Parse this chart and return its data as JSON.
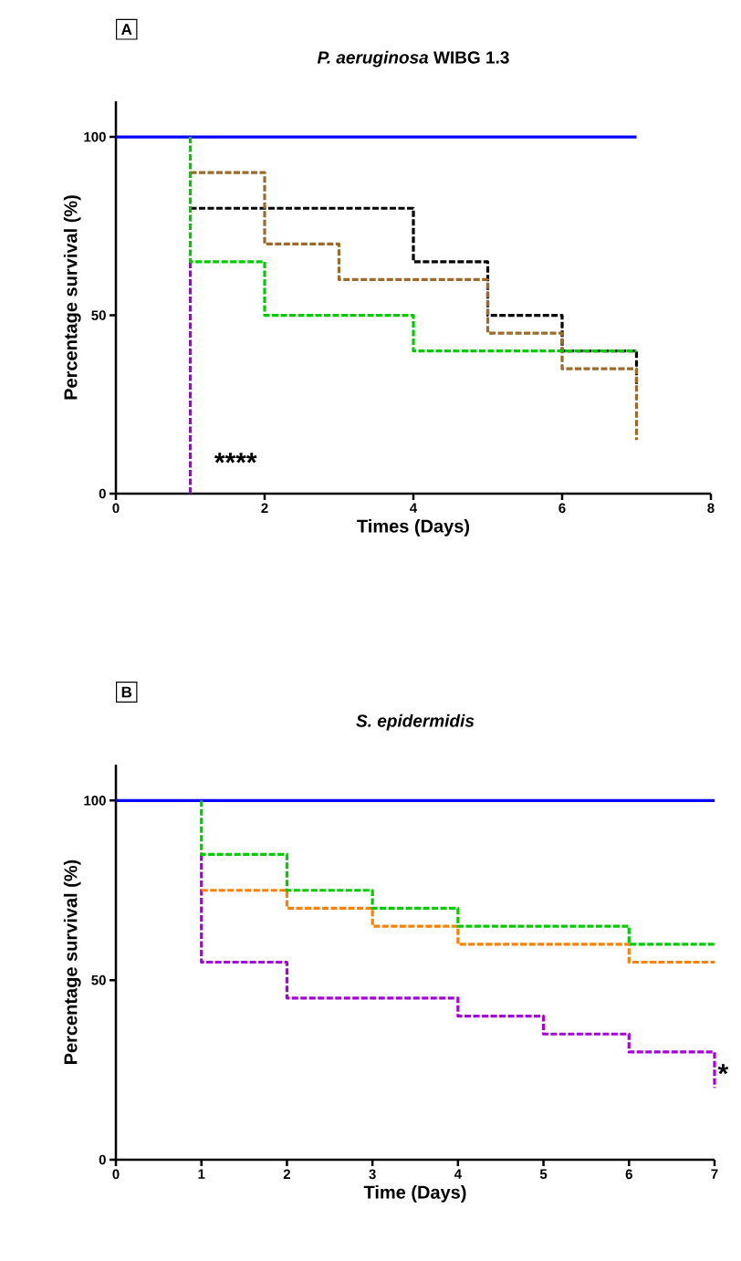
{
  "chart_data": [
    {
      "type": "step",
      "title": "*P. aeruginosa* WIBG 1.3",
      "xlabel": "Times (Days)",
      "ylabel": "Percentage survival (%)",
      "xlim": [
        0,
        8
      ],
      "ylim": [
        0,
        110
      ],
      "xticks": [
        0,
        2,
        4,
        6,
        8
      ],
      "yticks": [
        0,
        50,
        100
      ],
      "annotations": [
        "A",
        "****"
      ],
      "series": [
        {
          "color": "#0000ff",
          "line_style": "solid",
          "x": [
            0,
            7
          ],
          "values": [
            100,
            100
          ]
        },
        {
          "color": "#000000",
          "line_style": "dashed",
          "x": [
            1,
            4,
            5,
            6,
            7,
            7
          ],
          "values": [
            80,
            65,
            50,
            40,
            40,
            30
          ]
        },
        {
          "color": "#9c6a2a",
          "line_style": "dashed",
          "x": [
            1,
            2,
            3,
            5,
            6,
            7,
            7
          ],
          "values": [
            90,
            70,
            60,
            45,
            35,
            35,
            15
          ]
        },
        {
          "color": "#a500e0",
          "line_style": "dashed",
          "x": [
            1,
            1
          ],
          "values": [
            65,
            0
          ]
        },
        {
          "color": "#00cc00",
          "line_style": "dashed",
          "x": [
            1,
            1,
            2,
            4,
            7
          ],
          "values": [
            100,
            65,
            50,
            40,
            40
          ]
        }
      ]
    },
    {
      "type": "step",
      "title": "*S. epidermidis*",
      "xlabel": "Time (Days)",
      "ylabel": "Percentage survival (%)",
      "xlim": [
        0,
        7
      ],
      "ylim": [
        0,
        110
      ],
      "xticks": [
        0,
        1,
        2,
        3,
        4,
        5,
        6,
        7
      ],
      "yticks": [
        0,
        50,
        100
      ],
      "annotations": [
        "B",
        {
          "text": "*",
          "x": 7,
          "y": 24
        }
      ],
      "series": [
        {
          "color": "#0000ff",
          "line_style": "solid",
          "x": [
            0,
            7
          ],
          "values": [
            100,
            100
          ]
        },
        {
          "color": "#a500e0",
          "line_style": "dashed",
          "x": [
            1,
            1,
            2,
            4,
            5,
            6,
            7,
            7
          ],
          "values": [
            85,
            55,
            45,
            40,
            35,
            30,
            30,
            20
          ]
        },
        {
          "color": "#ff8000",
          "line_style": "dashed",
          "x": [
            1,
            2,
            3,
            4,
            6,
            7
          ],
          "values": [
            75,
            70,
            65,
            60,
            55,
            55
          ]
        },
        {
          "color": "#00cc00",
          "line_style": "dashed",
          "x": [
            1,
            1,
            2,
            3,
            4,
            6,
            7
          ],
          "values": [
            100,
            85,
            75,
            70,
            65,
            60,
            60
          ]
        }
      ]
    }
  ]
}
